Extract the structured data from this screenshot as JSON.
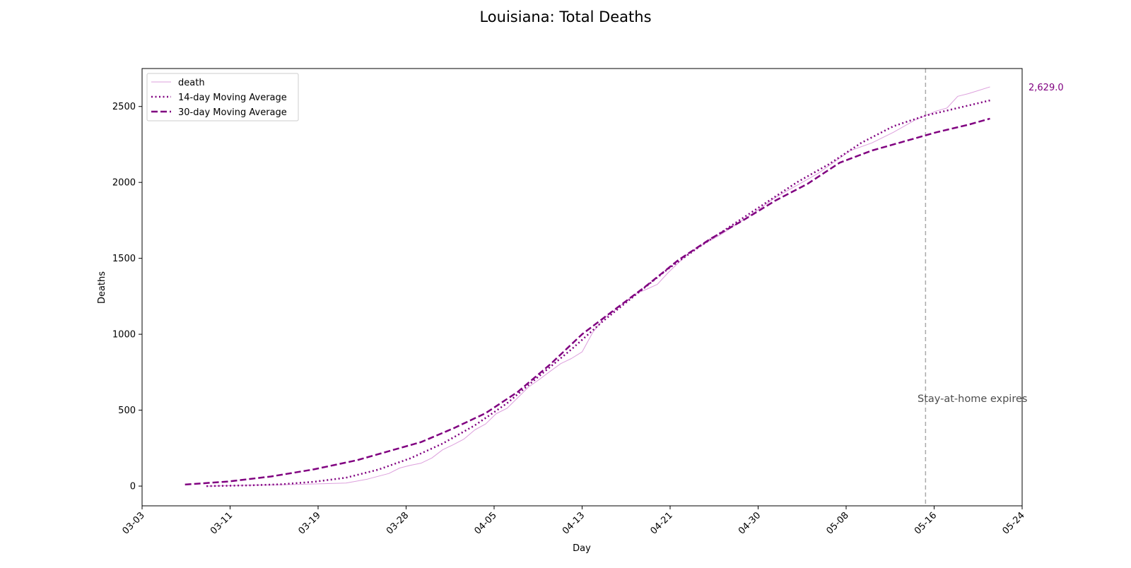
{
  "chart_data": {
    "type": "line",
    "title": "Louisiana: Total Deaths",
    "xlabel": "Day",
    "ylabel": "Deaths",
    "x_tick_labels": [
      "03-03",
      "03-11",
      "03-19",
      "03-28",
      "04-05",
      "04-13",
      "04-21",
      "04-30",
      "05-08",
      "05-16",
      "05-24"
    ],
    "y_ticks": [
      0,
      500,
      1000,
      1500,
      2000,
      2500
    ],
    "ylim": [
      -130,
      2750
    ],
    "grid": false,
    "legend_position": "upper-left",
    "last_value_label": "2,629.0",
    "annotation": {
      "text": "Stay-at-home expires",
      "date": "05-15"
    },
    "series": [
      {
        "name": "death",
        "style": "solid-thin",
        "color": "#dda0dd",
        "points": [
          [
            "03-09",
            0
          ],
          [
            "03-13",
            6
          ],
          [
            "03-17",
            10
          ],
          [
            "03-20",
            16
          ],
          [
            "03-22",
            20
          ],
          [
            "03-24",
            46
          ],
          [
            "03-26",
            83
          ],
          [
            "03-27",
            119
          ],
          [
            "03-28",
            137
          ],
          [
            "03-29",
            151
          ],
          [
            "03-30",
            185
          ],
          [
            "03-31",
            239
          ],
          [
            "04-01",
            273
          ],
          [
            "04-02",
            310
          ],
          [
            "04-03",
            370
          ],
          [
            "04-04",
            409
          ],
          [
            "04-05",
            477
          ],
          [
            "04-06",
            512
          ],
          [
            "04-07",
            582
          ],
          [
            "04-08",
            652
          ],
          [
            "04-09",
            702
          ],
          [
            "04-10",
            755
          ],
          [
            "04-11",
            806
          ],
          [
            "04-12",
            840
          ],
          [
            "04-13",
            884
          ],
          [
            "04-14",
            1013
          ],
          [
            "04-15",
            1103
          ],
          [
            "04-16",
            1156
          ],
          [
            "04-17",
            1213
          ],
          [
            "04-18",
            1267
          ],
          [
            "04-19",
            1296
          ],
          [
            "04-20",
            1328
          ],
          [
            "04-21",
            1405
          ],
          [
            "04-23",
            1540
          ],
          [
            "04-26",
            1660
          ],
          [
            "04-29",
            1800
          ],
          [
            "05-01",
            1900
          ],
          [
            "05-05",
            2060
          ],
          [
            "05-08",
            2210
          ],
          [
            "05-10",
            2260
          ],
          [
            "05-12",
            2330
          ],
          [
            "05-14",
            2410
          ],
          [
            "05-15",
            2440
          ],
          [
            "05-16",
            2470
          ],
          [
            "05-17",
            2490
          ],
          [
            "05-18",
            2567
          ],
          [
            "05-19",
            2585
          ],
          [
            "05-21",
            2629
          ]
        ]
      },
      {
        "name": "14-day Moving Average",
        "style": "dotted",
        "color": "#800080",
        "points": [
          [
            "03-09",
            0
          ],
          [
            "03-13",
            5
          ],
          [
            "03-16",
            12
          ],
          [
            "03-19",
            28
          ],
          [
            "03-22",
            55
          ],
          [
            "03-25",
            108
          ],
          [
            "03-28",
            183
          ],
          [
            "03-31",
            280
          ],
          [
            "04-03",
            400
          ],
          [
            "04-06",
            545
          ],
          [
            "04-09",
            725
          ],
          [
            "04-12",
            900
          ],
          [
            "04-15",
            1090
          ],
          [
            "04-18",
            1260
          ],
          [
            "04-21",
            1430
          ],
          [
            "04-24",
            1580
          ],
          [
            "04-27",
            1720
          ],
          [
            "04-30",
            1860
          ],
          [
            "05-03",
            2000
          ],
          [
            "05-06",
            2120
          ],
          [
            "05-09",
            2260
          ],
          [
            "05-12",
            2370
          ],
          [
            "05-15",
            2440
          ],
          [
            "05-18",
            2490
          ],
          [
            "05-21",
            2540
          ]
        ]
      },
      {
        "name": "30-day Moving Average",
        "style": "dashed",
        "color": "#800080",
        "points": [
          [
            "03-07",
            10
          ],
          [
            "03-11",
            30
          ],
          [
            "03-15",
            63
          ],
          [
            "03-19",
            110
          ],
          [
            "03-23",
            170
          ],
          [
            "03-27",
            250
          ],
          [
            "03-29",
            290
          ],
          [
            "04-01",
            380
          ],
          [
            "04-04",
            480
          ],
          [
            "04-07",
            620
          ],
          [
            "04-10",
            800
          ],
          [
            "04-13",
            1000
          ],
          [
            "04-16",
            1160
          ],
          [
            "04-19",
            1320
          ],
          [
            "04-22",
            1490
          ],
          [
            "04-25",
            1630
          ],
          [
            "04-28",
            1750
          ],
          [
            "05-01",
            1880
          ],
          [
            "05-04",
            1990
          ],
          [
            "05-07",
            2130
          ],
          [
            "05-10",
            2210
          ],
          [
            "05-13",
            2270
          ],
          [
            "05-16",
            2330
          ],
          [
            "05-19",
            2380
          ],
          [
            "05-21",
            2420
          ]
        ]
      }
    ]
  },
  "colors": {
    "death": "#dda0dd",
    "moving_average": "#800080",
    "annotation_line": "#aaaaaa",
    "annotation_text": "#4d4d4d",
    "last_value": "#800080"
  }
}
